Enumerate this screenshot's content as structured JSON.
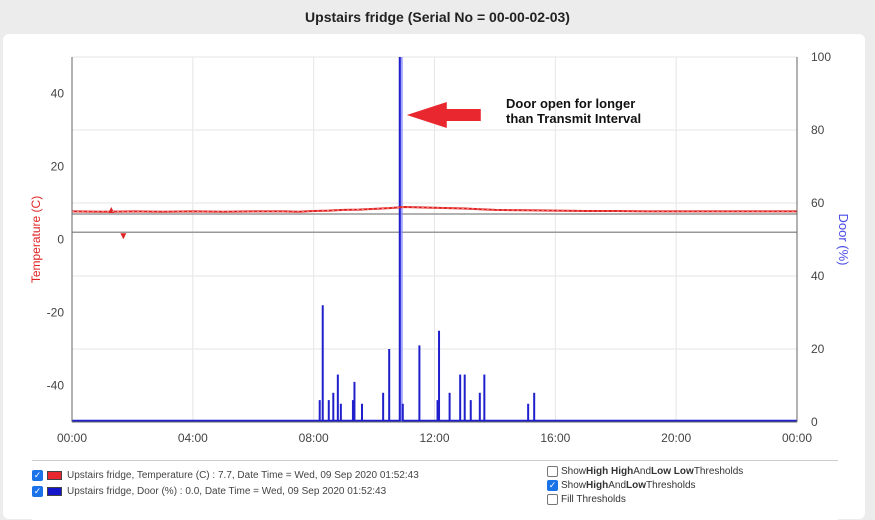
{
  "page": {
    "title": "Upstairs fridge (Serial No = 00-00-02-03)"
  },
  "chart_data": {
    "type": "line",
    "x_axis": {
      "ticks": [
        "00:00",
        "04:00",
        "08:00",
        "12:00",
        "16:00",
        "20:00",
        "00:00"
      ],
      "range_hours": [
        0,
        24
      ]
    },
    "y_axis_left": {
      "label": "Temperature (C)",
      "range": [
        -50,
        50
      ],
      "ticks": [
        40,
        20,
        0,
        -20,
        -40
      ]
    },
    "y_axis_right": {
      "label": "Door (%)",
      "range": [
        0,
        100
      ],
      "ticks": [
        100,
        80,
        60,
        40,
        20,
        0
      ]
    },
    "thresholds": {
      "high_temp": 7,
      "low_temp": 2,
      "high_marker_hour": 1.3,
      "low_marker_hour": 1.7
    },
    "series": [
      {
        "name": "Upstairs fridge, Temperature (C)",
        "color": "#e02424",
        "axis": "left",
        "x_hours": [
          0,
          1,
          2,
          3,
          4,
          5,
          6,
          7,
          7.5,
          8,
          8.5,
          9,
          9.5,
          10,
          10.5,
          11,
          11.5,
          12,
          12.5,
          13,
          13.5,
          14,
          15,
          16,
          17,
          18,
          19,
          20,
          21,
          22,
          23,
          24
        ],
        "values": [
          7.7,
          7.6,
          7.7,
          7.6,
          7.7,
          7.6,
          7.7,
          7.7,
          7.6,
          7.8,
          7.9,
          8.1,
          8.2,
          8.4,
          8.6,
          8.9,
          8.8,
          8.7,
          8.6,
          8.5,
          8.3,
          8.1,
          8.0,
          7.9,
          7.8,
          7.8,
          7.7,
          7.7,
          7.7,
          7.7,
          7.7,
          7.7
        ]
      },
      {
        "name": "Upstairs fridge, Door (%)",
        "color": "#1f1fcc",
        "axis": "right",
        "baseline": 0,
        "spikes_hours": [
          8.2,
          8.3,
          8.5,
          8.65,
          8.8,
          8.9,
          9.3,
          9.35,
          9.6,
          10.3,
          10.5,
          10.85,
          10.95,
          11.5,
          12.1,
          12.15,
          12.5,
          12.85,
          13.0,
          13.2,
          13.5,
          13.65,
          15.1,
          15.3
        ],
        "spikes_values": [
          6,
          32,
          6,
          8,
          13,
          5,
          6,
          11,
          5,
          8,
          20,
          100,
          5,
          21,
          6,
          25,
          8,
          13,
          13,
          6,
          8,
          13,
          5,
          8
        ],
        "open_interval_hours": [
          10.85,
          10.95
        ]
      }
    ],
    "annotation": {
      "text_line1": "Door open for longer",
      "text_line2": "than Transmit Interval",
      "arrow_color": "#e8282e"
    }
  },
  "legend": {
    "items": [
      {
        "checked": true,
        "color": "#e8282e",
        "label": "Upstairs fridge, Temperature (C) : 7.7, Date Time = Wed, 09 Sep 2020 01:52:43"
      },
      {
        "checked": true,
        "color": "#1515cc",
        "label": "Upstairs fridge, Door (%) : 0.0, Date Time = Wed, 09 Sep 2020 01:52:43"
      }
    ]
  },
  "options": [
    {
      "checked": false,
      "prefix": "Show ",
      "b1": "High High",
      "mid": " And ",
      "b2": "Low Low",
      "suffix": " Thresholds"
    },
    {
      "checked": true,
      "prefix": "Show ",
      "b1": "High",
      "mid": " And ",
      "b2": "Low",
      "suffix": " Thresholds"
    },
    {
      "checked": false,
      "prefix": "",
      "b1": "",
      "mid": "",
      "b2": "",
      "suffix": "Fill Thresholds"
    }
  ]
}
